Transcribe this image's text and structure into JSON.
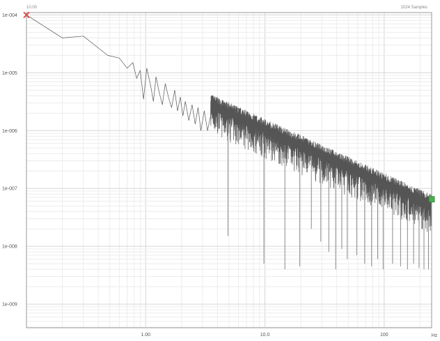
{
  "chart_data": {
    "type": "line",
    "title": "",
    "xlabel": "",
    "ylabel": "",
    "x_scale": "log",
    "y_scale": "log",
    "xlim": [
      0.1,
      250
    ],
    "ylim": [
      3.9e-10,
      0.00011
    ],
    "grid": true,
    "x_unit_label": "Hz",
    "cursor_start_label": "10.00",
    "samples_label": "1024 Samples",
    "y_ticks": [
      {
        "value": 0.0001,
        "label": "1e-004"
      },
      {
        "value": 1e-05,
        "label": "1e-005"
      },
      {
        "value": 1e-06,
        "label": "1e-006"
      },
      {
        "value": 1e-07,
        "label": "1e-007"
      },
      {
        "value": 1e-08,
        "label": "1e-008"
      },
      {
        "value": 1e-09,
        "label": "1e-009"
      }
    ],
    "x_ticks": [
      {
        "value": 1,
        "label": "1.00"
      },
      {
        "value": 10,
        "label": "10.0"
      },
      {
        "value": 100,
        "label": "100"
      }
    ],
    "envelope": {
      "x0": 0.1,
      "y0": 0.0001,
      "x1": 250,
      "y1": 6.5e-08
    },
    "low_freq_points": {
      "x": [
        0.1,
        0.2,
        0.3,
        0.48,
        0.6,
        0.7,
        0.78,
        0.84,
        0.9,
        0.96,
        1.02,
        1.1,
        1.16,
        1.22,
        1.3,
        1.38,
        1.46,
        1.55,
        1.65,
        1.75,
        1.85,
        1.95,
        2.05,
        2.15,
        2.3,
        2.45,
        2.6,
        2.75,
        2.9,
        3.1,
        3.3,
        3.5
      ],
      "y": [
        0.0001,
        4e-05,
        4.3e-05,
        2e-05,
        1.8e-05,
        1.2e-05,
        1.5e-05,
        8e-06,
        1.1e-05,
        3.5e-06,
        1.2e-05,
        6e-06,
        3.2e-06,
        8.5e-06,
        4.5e-06,
        2.8e-06,
        6.5e-06,
        3.8e-06,
        2.5e-06,
        5e-06,
        2.2e-06,
        3.8e-06,
        1.8e-06,
        3.2e-06,
        1.5e-06,
        2.8e-06,
        1.3e-06,
        2.5e-06,
        1e-06,
        2.2e-06,
        1e-06,
        1.8e-06
      ]
    },
    "dips": [
      {
        "x": 4.9,
        "y": 1.5e-08
      },
      {
        "x": 9.8,
        "y": 5e-09
      },
      {
        "x": 14.7,
        "y": 4e-09
      },
      {
        "x": 19.6,
        "y": 4.5e-09
      },
      {
        "x": 24.5,
        "y": 2e-08
      },
      {
        "x": 29.4,
        "y": 1.2e-08
      },
      {
        "x": 34.3,
        "y": 8e-09
      },
      {
        "x": 39.2,
        "y": 4e-09
      },
      {
        "x": 44.1,
        "y": 9e-09
      },
      {
        "x": 49.0,
        "y": 6e-09
      },
      {
        "x": 58.8,
        "y": 7e-09
      },
      {
        "x": 68.6,
        "y": 5e-09
      },
      {
        "x": 78.4,
        "y": 4.5e-09
      },
      {
        "x": 88.2,
        "y": 6e-09
      },
      {
        "x": 98.0,
        "y": 4e-09
      },
      {
        "x": 117.6,
        "y": 5e-09
      },
      {
        "x": 137.2,
        "y": 4.5e-09
      },
      {
        "x": 156.8,
        "y": 4e-09
      },
      {
        "x": 176.4,
        "y": 5e-09
      },
      {
        "x": 196.0,
        "y": 4.2e-09
      },
      {
        "x": 215.6,
        "y": 4e-09
      },
      {
        "x": 235.2,
        "y": 4e-09
      }
    ],
    "markers": [
      {
        "x": 0.1,
        "y": 0.0001,
        "shape": "x",
        "color": "#d9534f"
      },
      {
        "x": 250,
        "y": 6.5e-08,
        "shape": "square",
        "color": "#4caf50"
      }
    ],
    "colors": {
      "line": "#555555",
      "grid_major": "#d6d6d6",
      "grid_minor": "#ececec",
      "frame": "#9a9a9a",
      "dip_line": "#888888"
    }
  }
}
